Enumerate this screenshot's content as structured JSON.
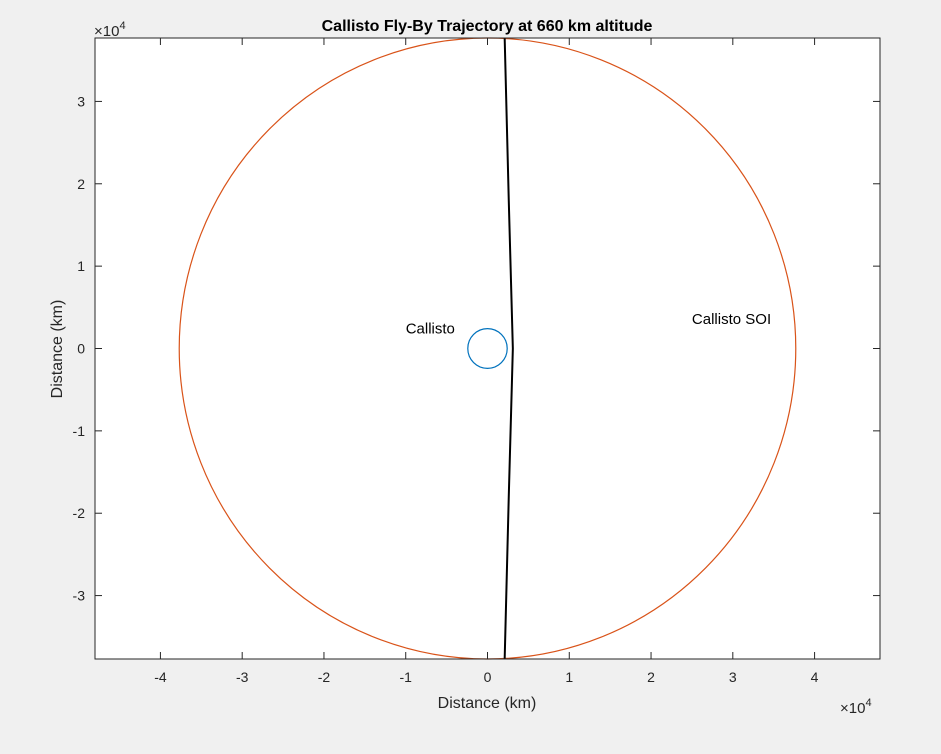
{
  "chart_data": {
    "type": "line",
    "title": "Callisto Fly-By Trajectory at 660 km altitude",
    "xlabel": "Distance (km)",
    "ylabel": "Distance (km)",
    "xlim": [
      -48000,
      48000
    ],
    "ylim": [
      -37700,
      37700
    ],
    "grid": false,
    "axis_exponent": {
      "base": "×10",
      "power": "4"
    },
    "x_ticks": [
      -40000,
      -30000,
      -20000,
      -10000,
      0,
      10000,
      20000,
      30000,
      40000
    ],
    "x_tick_labels": [
      "-4",
      "-3",
      "-2",
      "-1",
      "0",
      "1",
      "2",
      "3",
      "4"
    ],
    "y_ticks": [
      -30000,
      -20000,
      -10000,
      0,
      10000,
      20000,
      30000
    ],
    "y_tick_labels": [
      "-3",
      "-2",
      "-1",
      "0",
      "1",
      "2",
      "3"
    ],
    "series": [
      {
        "color": "#0072bd",
        "shape": "circle",
        "center": [
          0,
          0
        ],
        "radius": 2410
      },
      {
        "color": "#d95319",
        "shape": "circle",
        "center": [
          0,
          0
        ],
        "radius": 37700
      },
      {
        "color": "#000000",
        "shape": "polyline",
        "x": [
          2100,
          2600,
          3100,
          2600,
          2100
        ],
        "y": [
          37700,
          18000,
          0,
          -18000,
          -37700
        ]
      }
    ],
    "annotations": [
      {
        "text": "Callisto",
        "x": -10000,
        "y": 1800
      },
      {
        "text": "Callisto SOI",
        "x": 25000,
        "y": 3000
      }
    ]
  }
}
